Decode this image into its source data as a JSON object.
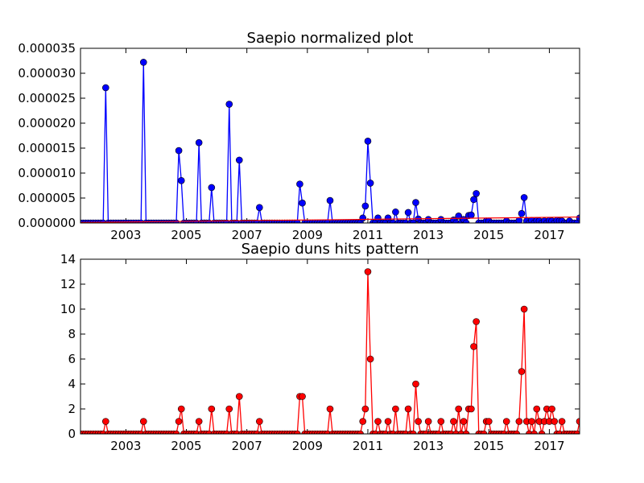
{
  "chart_data": [
    {
      "type": "line",
      "title": "Saepio normalized plot",
      "xlabel": "",
      "ylabel": "",
      "x_range": [
        2001.5,
        2018.0
      ],
      "ylim": [
        0,
        3.5e-05
      ],
      "x_ticks": [
        "2003",
        "2005",
        "2007",
        "2009",
        "2011",
        "2013",
        "2015",
        "2017"
      ],
      "y_ticks": [
        "0.000000",
        "0.000005",
        "0.000010",
        "0.000015",
        "0.000020",
        "0.000025",
        "0.000030",
        "0.000035"
      ],
      "series": [
        {
          "color": "#0000ff",
          "marker_color": "#0000ff",
          "points": [
            [
              2002.33,
              2.71e-05
            ],
            [
              2003.58,
              3.22e-05
            ],
            [
              2004.75,
              1.45e-05
            ],
            [
              2004.83,
              8.5e-06
            ],
            [
              2005.42,
              1.61e-05
            ],
            [
              2005.83,
              7.1e-06
            ],
            [
              2006.42,
              2.38e-05
            ],
            [
              2006.75,
              1.26e-05
            ],
            [
              2007.42,
              3.1e-06
            ],
            [
              2008.75,
              7.8e-06
            ],
            [
              2008.83,
              4e-06
            ],
            [
              2009.75,
              4.5e-06
            ],
            [
              2010.83,
              1e-06
            ],
            [
              2010.92,
              3.4e-06
            ],
            [
              2011.0,
              1.64e-05
            ],
            [
              2011.08,
              8e-06
            ],
            [
              2011.33,
              1e-06
            ],
            [
              2011.67,
              1e-06
            ],
            [
              2011.92,
              2.2e-06
            ],
            [
              2012.33,
              2.1e-06
            ],
            [
              2012.58,
              4.1e-06
            ],
            [
              2012.67,
              8e-07
            ],
            [
              2013.0,
              7e-07
            ],
            [
              2013.42,
              7e-07
            ],
            [
              2013.83,
              6e-07
            ],
            [
              2014.0,
              1.4e-06
            ],
            [
              2014.17,
              7e-07
            ],
            [
              2014.33,
              1.5e-06
            ],
            [
              2014.42,
              1.6e-06
            ],
            [
              2014.5,
              4.7e-06
            ],
            [
              2014.58,
              5.9e-06
            ],
            [
              2014.92,
              4e-07
            ],
            [
              2015.0,
              4e-07
            ],
            [
              2015.58,
              4e-07
            ],
            [
              2016.0,
              5e-07
            ],
            [
              2016.08,
              1.9e-06
            ],
            [
              2016.17,
              5.1e-06
            ],
            [
              2016.25,
              4e-07
            ],
            [
              2016.42,
              5e-07
            ],
            [
              2016.58,
              5e-07
            ],
            [
              2016.67,
              4e-07
            ],
            [
              2016.83,
              4e-07
            ],
            [
              2017.0,
              5e-07
            ],
            [
              2017.08,
              4e-07
            ],
            [
              2017.25,
              5e-07
            ],
            [
              2017.33,
              4e-07
            ],
            [
              2017.42,
              4e-07
            ],
            [
              2017.67,
              4e-07
            ],
            [
              2018.0,
              1e-06
            ]
          ]
        },
        {
          "color": "#ff0000",
          "trend": true,
          "points": [
            [
              2001.5,
              1e-07
            ],
            [
              2018.0,
              1.2e-06
            ]
          ]
        }
      ]
    },
    {
      "type": "line",
      "title": "Saepio duns hits pattern",
      "xlabel": "",
      "ylabel": "",
      "x_range": [
        2001.5,
        2018.0
      ],
      "ylim": [
        0,
        14
      ],
      "x_ticks": [
        "2003",
        "2005",
        "2007",
        "2009",
        "2011",
        "2013",
        "2015",
        "2017"
      ],
      "y_ticks": [
        "0",
        "2",
        "4",
        "6",
        "8",
        "10",
        "12",
        "14"
      ],
      "series": [
        {
          "color": "#ff0000",
          "marker_color": "#ff0000",
          "points": [
            [
              2002.33,
              1
            ],
            [
              2003.58,
              1
            ],
            [
              2004.75,
              1
            ],
            [
              2004.83,
              2
            ],
            [
              2005.42,
              1
            ],
            [
              2005.83,
              2
            ],
            [
              2006.42,
              2
            ],
            [
              2006.75,
              3
            ],
            [
              2007.42,
              1
            ],
            [
              2008.75,
              3
            ],
            [
              2008.83,
              3
            ],
            [
              2009.75,
              2
            ],
            [
              2010.83,
              1
            ],
            [
              2010.92,
              2
            ],
            [
              2011.0,
              13
            ],
            [
              2011.08,
              6
            ],
            [
              2011.33,
              1
            ],
            [
              2011.67,
              1
            ],
            [
              2011.92,
              2
            ],
            [
              2012.33,
              2
            ],
            [
              2012.58,
              4
            ],
            [
              2012.67,
              1
            ],
            [
              2013.0,
              1
            ],
            [
              2013.42,
              1
            ],
            [
              2013.83,
              1
            ],
            [
              2014.0,
              2
            ],
            [
              2014.17,
              1
            ],
            [
              2014.33,
              2
            ],
            [
              2014.42,
              2
            ],
            [
              2014.5,
              7
            ],
            [
              2014.58,
              9
            ],
            [
              2014.92,
              1
            ],
            [
              2015.0,
              1
            ],
            [
              2015.58,
              1
            ],
            [
              2016.0,
              1
            ],
            [
              2016.08,
              5
            ],
            [
              2016.17,
              10
            ],
            [
              2016.25,
              1
            ],
            [
              2016.42,
              1
            ],
            [
              2016.58,
              2
            ],
            [
              2016.67,
              1
            ],
            [
              2016.83,
              1
            ],
            [
              2016.92,
              2
            ],
            [
              2017.0,
              1
            ],
            [
              2017.08,
              2
            ],
            [
              2017.17,
              1
            ],
            [
              2017.42,
              1
            ],
            [
              2018.0,
              1
            ]
          ]
        }
      ]
    }
  ]
}
